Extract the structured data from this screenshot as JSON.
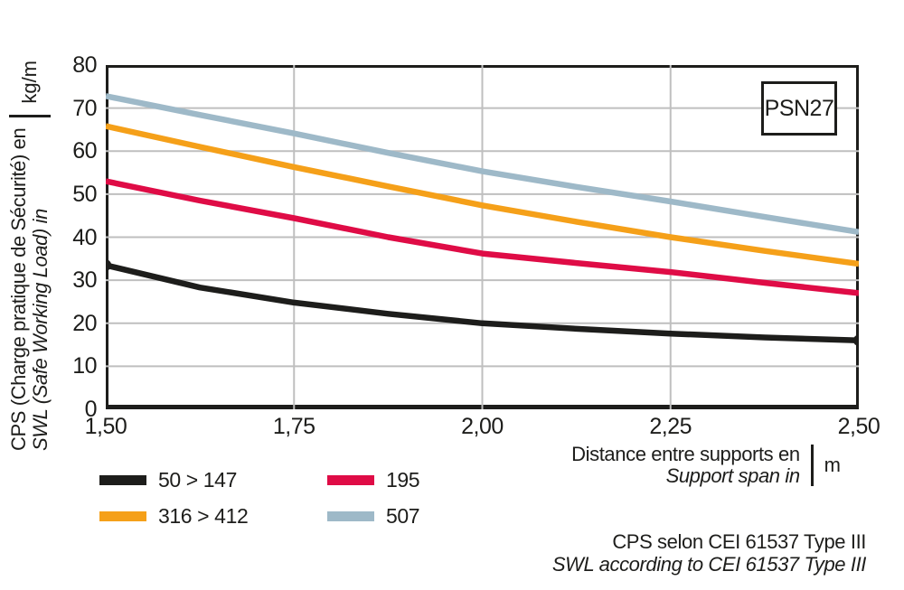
{
  "chart_data": {
    "type": "line",
    "title_box": "PSN27",
    "xlim": [
      1.5,
      2.5
    ],
    "ylim": [
      0,
      80
    ],
    "x_ticks": [
      1.5,
      1.75,
      2.0,
      2.25,
      2.5
    ],
    "x_tick_labels": [
      "1,50",
      "1,75",
      "2,00",
      "2,25",
      "2,50"
    ],
    "y_ticks": [
      0,
      10,
      20,
      30,
      40,
      50,
      60,
      70,
      80
    ],
    "y_tick_labels": [
      "0",
      "10",
      "20",
      "30",
      "40",
      "50",
      "60",
      "70",
      "80"
    ],
    "grid": true,
    "grid_color": "#bfbfbf",
    "frame_color": "#1d1d1b",
    "x": [
      1.5,
      1.625,
      1.75,
      1.875,
      2.0,
      2.125,
      2.25,
      2.375,
      2.5
    ],
    "series": [
      {
        "name": "507",
        "color": "#9eb9c8",
        "values": [
          72.8,
          68.4,
          64.1,
          59.6,
          55.3,
          51.7,
          48.3,
          44.7,
          41.2
        ],
        "end_markers": false
      },
      {
        "name": "316 > 412",
        "color": "#f5a019",
        "values": [
          65.8,
          61.0,
          56.3,
          51.8,
          47.4,
          43.6,
          40.0,
          36.8,
          33.8
        ],
        "end_markers": false
      },
      {
        "name": "195",
        "color": "#df0c46",
        "values": [
          53.0,
          48.5,
          44.4,
          40.0,
          36.2,
          34.0,
          31.9,
          29.4,
          27.0
        ],
        "end_markers": false
      },
      {
        "name": "50 > 147",
        "color": "#1d1d1b",
        "values": [
          33.5,
          28.3,
          24.8,
          22.2,
          20.0,
          18.7,
          17.6,
          16.7,
          16.0
        ],
        "end_markers": true
      }
    ],
    "ylabel": {
      "line1": "CPS (Charge pratique de Sécurité) en",
      "line2": "SWL (Safe Working Load) in",
      "unit": "kg/m"
    },
    "xlabel": {
      "line1": "Distance entre supports en",
      "line2": "Support span in",
      "unit": "m"
    },
    "legend_position": "bottom-left"
  },
  "legend": {
    "items": [
      {
        "label": "50 > 147",
        "color": "#1d1d1b"
      },
      {
        "label": "195",
        "color": "#df0c46"
      },
      {
        "label": "316 > 412",
        "color": "#f5a019"
      },
      {
        "label": "507",
        "color": "#9eb9c8"
      }
    ]
  },
  "footer": {
    "line1": "CPS selon CEI 61537 Type III",
    "line2": "SWL according to CEI 61537 Type III"
  }
}
